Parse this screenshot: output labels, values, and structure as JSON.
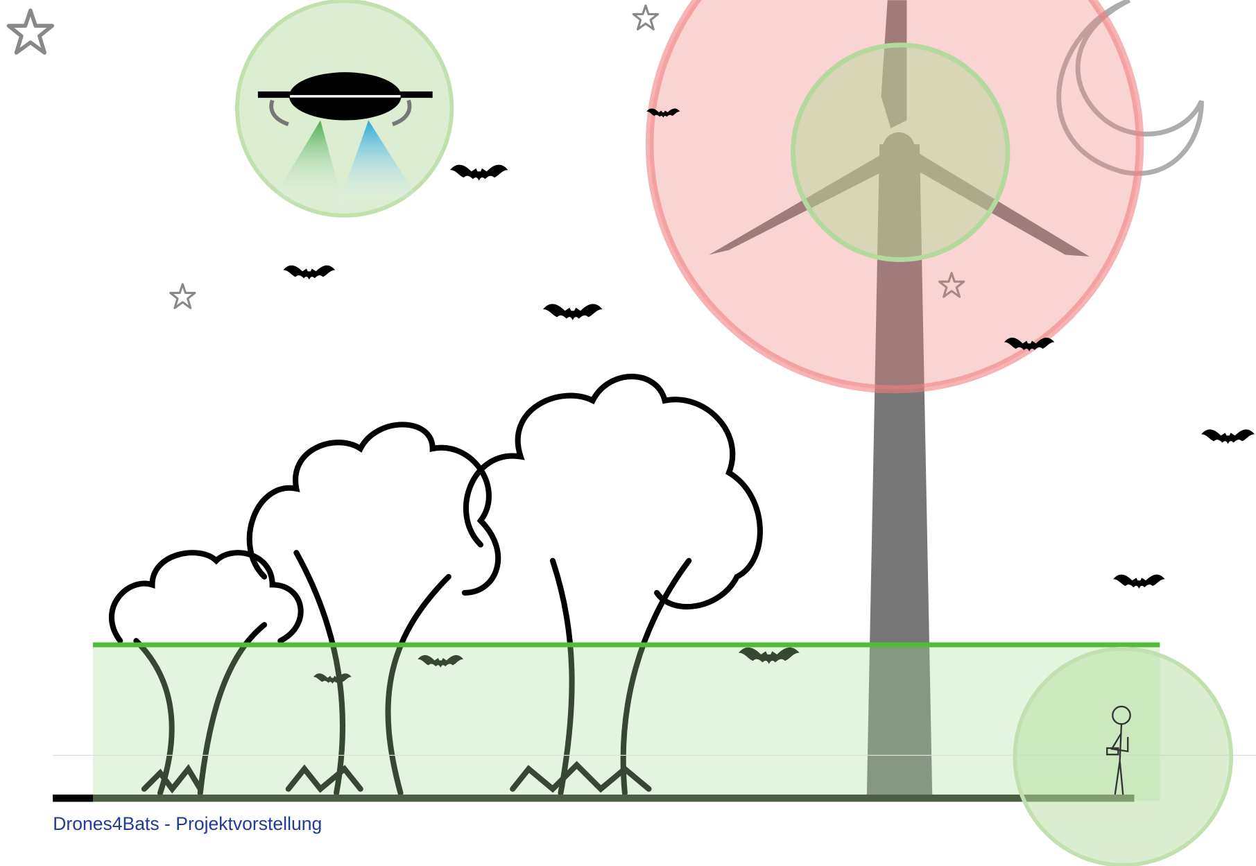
{
  "footer": {
    "text": "Drones4Bats - Projektvorstellung"
  }
}
